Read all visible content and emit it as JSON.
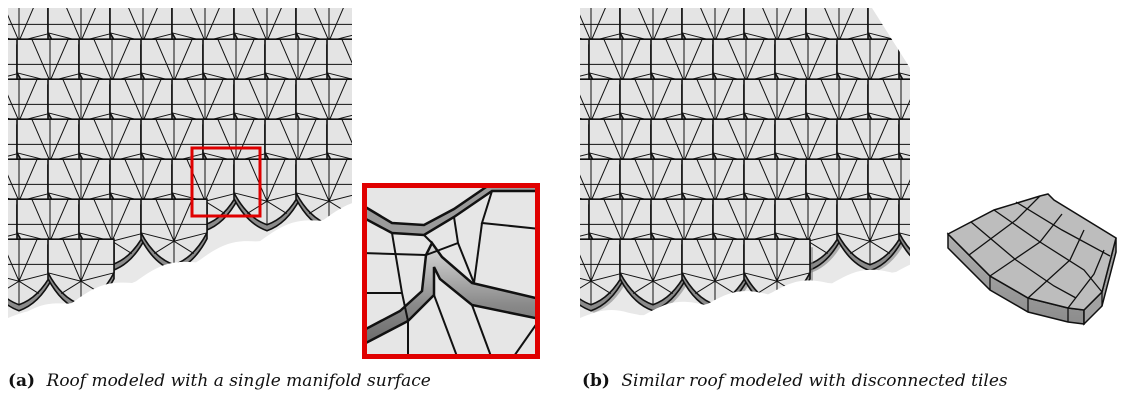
{
  "captions": {
    "a": {
      "label": "(a)",
      "text": "Roof modeled with a single manifold surface"
    },
    "b": {
      "label": "(b)",
      "text": "Similar roof modeled with disconnected tiles"
    }
  },
  "colors": {
    "tile_face": "#e4e4e4",
    "tile_rim": "#8a8a8a",
    "edge": "#111111",
    "highlight_box": "#e00000",
    "single_tile": "#b9b9b9"
  }
}
